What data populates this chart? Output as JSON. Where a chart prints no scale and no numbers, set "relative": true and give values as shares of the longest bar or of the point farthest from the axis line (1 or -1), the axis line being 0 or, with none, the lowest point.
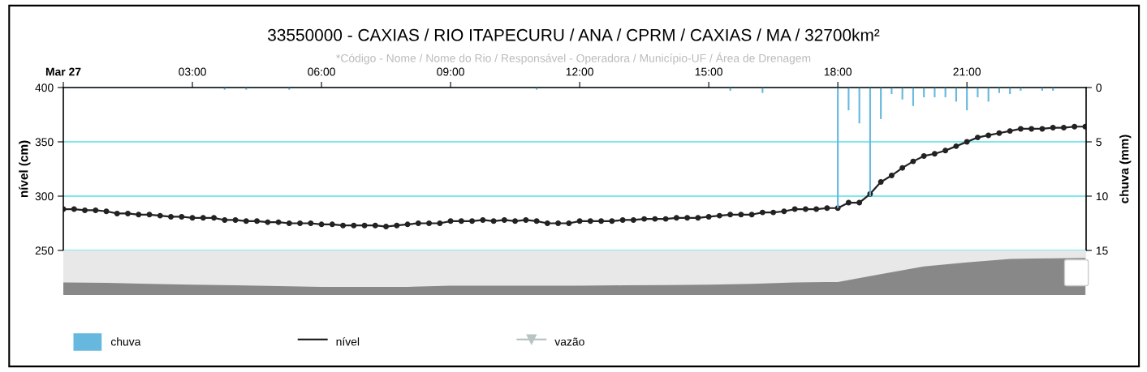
{
  "chart_data": [
    {
      "type": "line",
      "title": "33550000 - CAXIAS / RIO ITAPECURU / ANA / CPRM / CAXIAS / MA / 32700km²",
      "subtitle": "*Código - Nome / Nome do Rio / Responsável - Operadora / Município-UF / Área de Drenagem",
      "ylabel": "nível (cm)",
      "y2label": "chuva (mm)",
      "xlim": [
        0,
        23.77
      ],
      "xticks": [
        {
          "value": 0,
          "label": "Mar 27"
        },
        {
          "value": 3,
          "label": "03:00"
        },
        {
          "value": 6,
          "label": "06:00"
        },
        {
          "value": 9,
          "label": "09:00"
        },
        {
          "value": 12,
          "label": "12:00"
        },
        {
          "value": 15,
          "label": "15:00"
        },
        {
          "value": 18,
          "label": "18:00"
        },
        {
          "value": 21,
          "label": "21:00"
        }
      ],
      "ylim": [
        250,
        400
      ],
      "yticks": [
        250,
        300,
        350,
        400
      ],
      "y2lim": [
        15,
        0
      ],
      "y2ticks": [
        15,
        10,
        5,
        0
      ],
      "grid": "y",
      "legend": "bottom left",
      "series": [
        {
          "name": "chuva",
          "type": "bar",
          "axis": "y2",
          "color": "#66b8de",
          "x": [
            3.75,
            4.25,
            5.25,
            11,
            15.5,
            16.25,
            18,
            18.25,
            18.5,
            18.75,
            19,
            19.25,
            19.5,
            19.75,
            20,
            20.25,
            20.5,
            20.75,
            21,
            21.25,
            21.5,
            21.75,
            22,
            22.25,
            22.75,
            23
          ],
          "values": [
            0.2,
            0.2,
            0.2,
            0.2,
            0.3,
            0.5,
            11.1,
            2.1,
            3.3,
            10.0,
            2.9,
            0.6,
            1.1,
            1.7,
            0.9,
            0.9,
            0.9,
            1.3,
            2.1,
            0.9,
            1.3,
            0.5,
            0.6,
            0.3,
            0.3,
            0.3
          ]
        },
        {
          "name": "nível",
          "type": "line",
          "axis": "y",
          "color": "#222222",
          "marker": "circle",
          "line_style": "solid",
          "x": [
            0,
            0.25,
            0.5,
            0.75,
            1,
            1.25,
            1.5,
            1.75,
            2,
            2.25,
            2.5,
            2.75,
            3,
            3.25,
            3.5,
            3.75,
            4,
            4.25,
            4.5,
            4.75,
            5,
            5.25,
            5.5,
            5.75,
            6,
            6.25,
            6.5,
            6.75,
            7,
            7.25,
            7.5,
            7.75,
            8,
            8.25,
            8.5,
            8.75,
            9,
            9.25,
            9.5,
            9.75,
            10,
            10.25,
            10.5,
            10.75,
            11,
            11.25,
            11.5,
            11.75,
            12,
            12.25,
            12.5,
            12.75,
            13,
            13.25,
            13.5,
            13.75,
            14,
            14.25,
            14.5,
            14.75,
            15,
            15.25,
            15.5,
            15.75,
            16,
            16.25,
            16.5,
            16.75,
            17,
            17.25,
            17.5,
            17.75,
            18,
            18.25,
            18.5,
            18.75,
            19,
            19.25,
            19.5,
            19.75,
            20,
            20.25,
            20.5,
            20.75,
            21,
            21.25,
            21.5,
            21.75,
            22,
            22.25,
            22.5,
            22.75,
            23,
            23.25,
            23.5,
            23.75
          ],
          "values": [
            288,
            288,
            287,
            287,
            286,
            284,
            284,
            283,
            283,
            282,
            281,
            281,
            280,
            280,
            280,
            278,
            278,
            277,
            277,
            276,
            276,
            275,
            275,
            275,
            274,
            274,
            273,
            273,
            273,
            273,
            272,
            273,
            274,
            275,
            275,
            275,
            277,
            277,
            277,
            278,
            277,
            278,
            277,
            278,
            277,
            275,
            275,
            275,
            277,
            277,
            277,
            277,
            278,
            278,
            279,
            279,
            279,
            280,
            280,
            280,
            281,
            282,
            283,
            283,
            283,
            285,
            285,
            286,
            288,
            288,
            288,
            289,
            289,
            294,
            294,
            302,
            313,
            319,
            326,
            332,
            337,
            339,
            342,
            346,
            350,
            354,
            356,
            358,
            360,
            362,
            362,
            362,
            363,
            363,
            364,
            364
          ]
        },
        {
          "name": "vazão",
          "type": "line",
          "axis": "y",
          "color": "#b8c4c4",
          "marker": "triangle"
        }
      ]
    },
    {
      "type": "area",
      "relative": true,
      "tick_labels": false,
      "color": "#888888",
      "xlim": [
        0,
        23.77
      ],
      "bands": [
        {
          "axis": "x",
          "from": 0,
          "to": 23.77,
          "color": "#e8e8e8"
        }
      ],
      "x": [
        0,
        1,
        2,
        3,
        4,
        5,
        6,
        7,
        8,
        9,
        10,
        11,
        12,
        13,
        14,
        15,
        16,
        17,
        18,
        19,
        20,
        21,
        22,
        23,
        23.75
      ],
      "values": [
        0.34,
        0.33,
        0.3,
        0.28,
        0.26,
        0.24,
        0.22,
        0.22,
        0.22,
        0.25,
        0.25,
        0.25,
        0.25,
        0.26,
        0.27,
        0.28,
        0.3,
        0.34,
        0.35,
        0.56,
        0.77,
        0.88,
        0.97,
        0.99,
        1
      ]
    }
  ]
}
